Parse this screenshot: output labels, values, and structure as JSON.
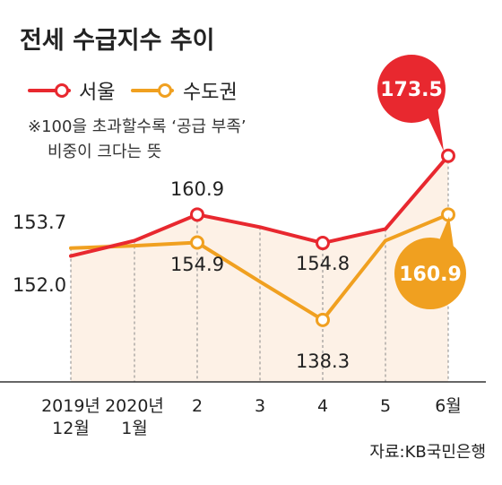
{
  "chart_data": {
    "type": "line",
    "title": "전세 수급지수 추이",
    "note_lines": [
      "※100을 초과할수록 ‘공급 부족’",
      "비중이 크다는 뜻"
    ],
    "source": "자료:KB국민은행",
    "categories": [
      [
        "2019년",
        "12월"
      ],
      [
        "2020년",
        "1월"
      ],
      [
        "2"
      ],
      [
        "3"
      ],
      [
        "4"
      ],
      [
        "5"
      ],
      [
        "6월"
      ]
    ],
    "ylim": [
      125,
      180
    ],
    "series": [
      {
        "name": "서울",
        "color": "#e8282f",
        "values": [
          152.0,
          155.3,
          160.9,
          158.2,
          154.8,
          157.8,
          173.5
        ],
        "labels": [
          "152.0",
          "",
          "160.9",
          "",
          "154.8",
          "",
          "173.5"
        ]
      },
      {
        "name": "수도권",
        "color": "#f0a020",
        "values": [
          153.7,
          154.2,
          154.9,
          146.5,
          138.3,
          155.3,
          160.9
        ],
        "labels": [
          "153.7",
          "",
          "154.9",
          "",
          "138.3",
          "",
          "160.9"
        ]
      }
    ],
    "fill_color": "#fdf1e6",
    "grid": "vertical-dashed"
  }
}
